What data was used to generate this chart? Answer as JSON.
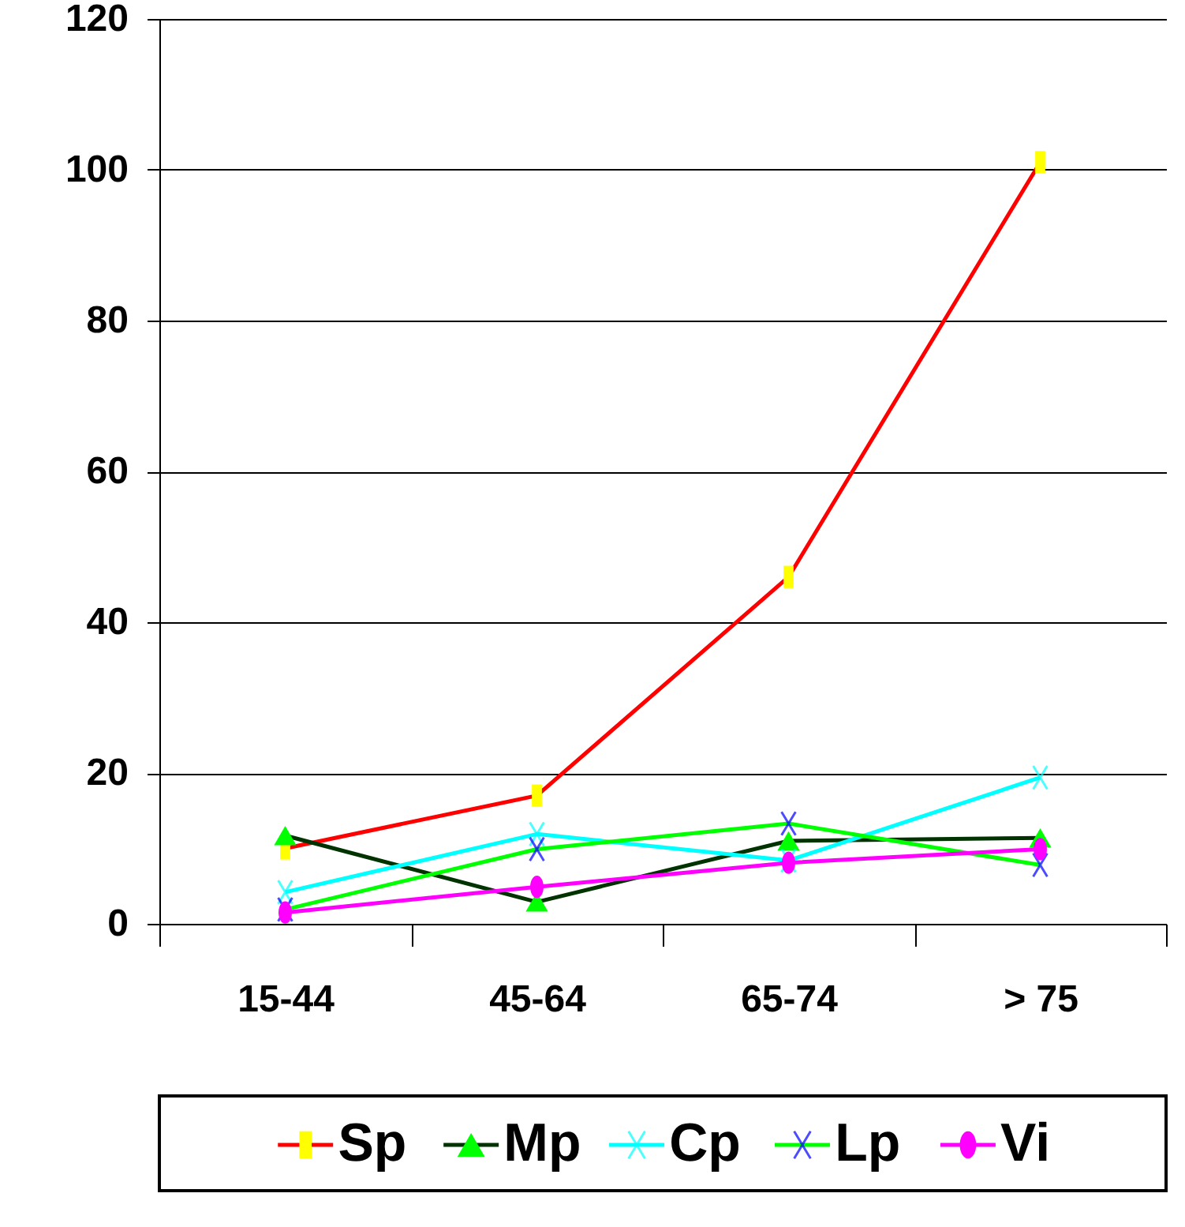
{
  "chart_data": {
    "type": "line",
    "categories": [
      "15-44",
      "45-64",
      "65-74",
      "> 75"
    ],
    "series": [
      {
        "name": "Sp",
        "color": "#ff0000",
        "colors": [
          "#ffff00",
          "#ffff00",
          "#ffff00",
          "#ffff00"
        ],
        "marker": "square",
        "values": [
          10,
          17,
          46,
          101
        ]
      },
      {
        "name": "Mp",
        "color": "#003300",
        "colors": [
          "#00ff00",
          "#00ff00",
          "#00ff00",
          "#00ff00"
        ],
        "marker": "triangle",
        "values": [
          11.7,
          2.9,
          11,
          11.4
        ]
      },
      {
        "name": "Cp",
        "color": "#00ffff",
        "colors": [
          "#00ffff",
          "#00ffff",
          "#00ffff",
          "#00ffff"
        ],
        "marker": "cross",
        "values": [
          4.2,
          11.9,
          8.4,
          19.4
        ]
      },
      {
        "name": "Lp",
        "color": "#00ff00",
        "colors": [
          "#0000ff",
          "#0000ff",
          "#0000ff",
          "#0000ff"
        ],
        "marker": "cross",
        "values": [
          1.9,
          9.9,
          13.3,
          7.8
        ]
      },
      {
        "name": "Vi",
        "color": "#ff00ff",
        "colors": [
          "#ff00ff",
          "#ff00ff",
          "#ff00ff",
          "#ff00ff"
        ],
        "marker": "circle",
        "values": [
          1.5,
          4.9,
          8.1,
          9.9
        ]
      }
    ],
    "ylim": [
      0,
      120
    ],
    "yticks": [
      0,
      20,
      40,
      60,
      80,
      100,
      120
    ],
    "grid": "y",
    "legend": "bottom",
    "line_style": "solid"
  }
}
